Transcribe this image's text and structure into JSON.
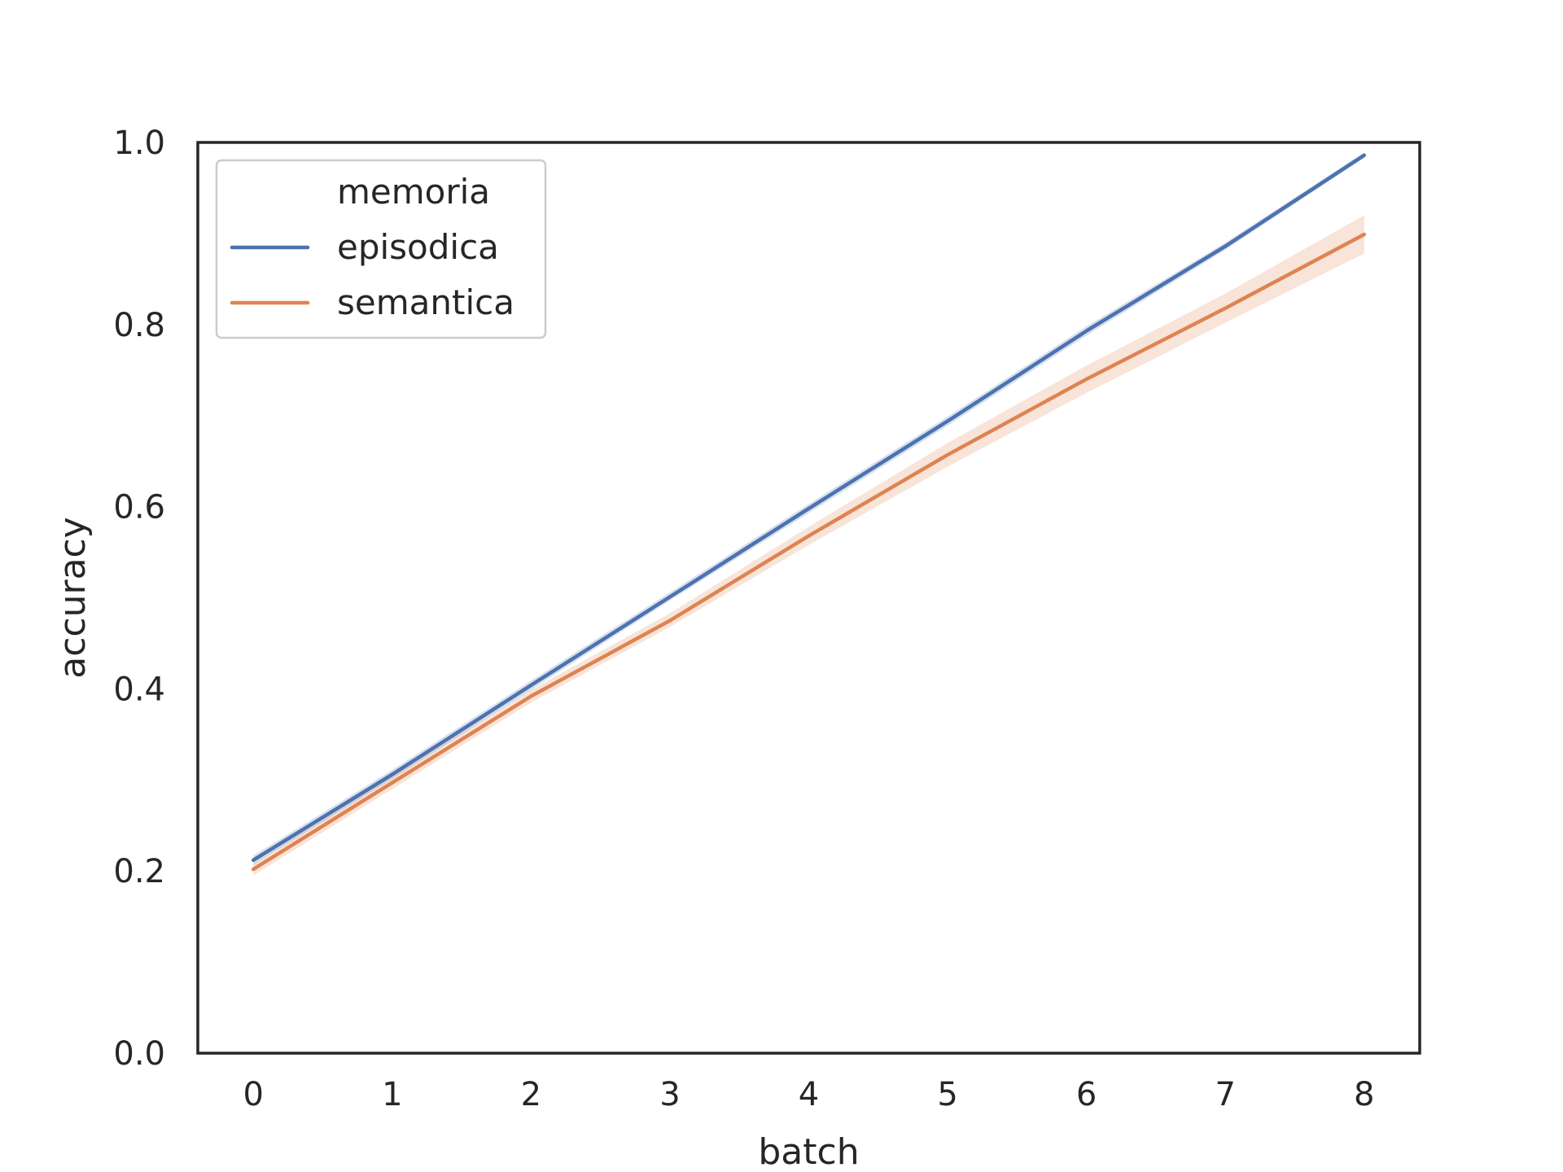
{
  "chart_data": {
    "type": "line",
    "xlabel": "batch",
    "ylabel": "accuracy",
    "x": [
      0,
      1,
      2,
      3,
      4,
      5,
      6,
      7,
      8
    ],
    "xlim": [
      -0.4,
      8.4
    ],
    "ylim": [
      0.0,
      1.0
    ],
    "x_ticks": [
      "0",
      "1",
      "2",
      "3",
      "4",
      "5",
      "6",
      "7",
      "8"
    ],
    "y_ticks": [
      "0.0",
      "0.2",
      "0.4",
      "0.6",
      "0.8",
      "1.0"
    ],
    "grid": false,
    "legend": {
      "title": "memoria",
      "placement": "top-left"
    },
    "series": [
      {
        "name": "episodica",
        "color": "#4c72b0",
        "values": [
          0.212,
          0.306,
          0.404,
          0.501,
          0.598,
          0.694,
          0.793,
          0.886,
          0.986
        ],
        "ci_low": [
          0.207,
          0.301,
          0.399,
          0.497,
          0.593,
          0.689,
          0.788,
          0.882,
          0.983
        ],
        "ci_high": [
          0.217,
          0.311,
          0.409,
          0.506,
          0.603,
          0.699,
          0.798,
          0.89,
          0.989
        ]
      },
      {
        "name": "semantica",
        "color": "#dd8452",
        "values": [
          0.202,
          0.297,
          0.392,
          0.475,
          0.568,
          0.657,
          0.74,
          0.818,
          0.899
        ],
        "ci_low": [
          0.195,
          0.29,
          0.385,
          0.468,
          0.558,
          0.644,
          0.725,
          0.802,
          0.878
        ],
        "ci_high": [
          0.208,
          0.304,
          0.399,
          0.483,
          0.578,
          0.67,
          0.755,
          0.834,
          0.92
        ]
      }
    ]
  }
}
